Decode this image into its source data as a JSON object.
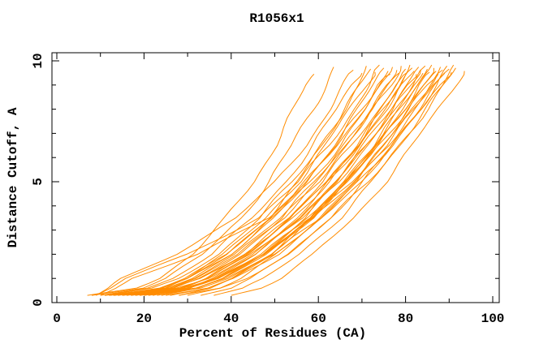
{
  "figure": {
    "background": "#ffffff",
    "frame_color": "#000000",
    "curve_color": "#ff8c00"
  },
  "chart_data": {
    "type": "line",
    "title": "R1056x1",
    "xlabel": "Percent of Residues (CA)",
    "ylabel": "Distance Cutoff, A",
    "xlim": [
      0,
      100
    ],
    "ylim": [
      0,
      10
    ],
    "grid": false,
    "legend": "none",
    "x_major_ticks": [
      0,
      20,
      40,
      60,
      80,
      100
    ],
    "x_major_tick_labels": [
      "0",
      "20",
      "40",
      "60",
      "80",
      "100"
    ],
    "x_minor_ticks": [
      10,
      30,
      50,
      70,
      90
    ],
    "y_major_ticks": [
      0,
      5,
      10
    ],
    "y_major_tick_labels": [
      "0",
      "5",
      "10"
    ],
    "y_minor_ticks": [
      1,
      2,
      3,
      4,
      6,
      7,
      8,
      9
    ],
    "series_color": "#ff8c00",
    "cutoff_levels": [
      0.3,
      0.6,
      1,
      2,
      3.5,
      5,
      6.5,
      8,
      9,
      9.7
    ],
    "series": [
      [
        7,
        18,
        23.2,
        31.1,
        39,
        45.1,
        50.1,
        54.5,
        57.2,
        59
      ],
      [
        8,
        19.8,
        25.3,
        33.7,
        42.2,
        48.6,
        54,
        58.7,
        61.6,
        63.5
      ],
      [
        9,
        12,
        15,
        27,
        41,
        50.5,
        57,
        62.5,
        66,
        68
      ],
      [
        10,
        20.7,
        26.4,
        35.5,
        45,
        52.4,
        58.7,
        64.3,
        67.7,
        70
      ],
      [
        12,
        24.5,
        30.3,
        39.3,
        48.3,
        55.2,
        60.9,
        65.9,
        69,
        71
      ],
      [
        11,
        21.9,
        27.7,
        36.9,
        46.6,
        54.1,
        60.5,
        66.2,
        69.7,
        72
      ],
      [
        13,
        23.7,
        29.4,
        38.5,
        48,
        55.4,
        61.7,
        67.3,
        70.7,
        73
      ],
      [
        9,
        12.5,
        16,
        30,
        46,
        55.5,
        62.5,
        68,
        71.5,
        74
      ],
      [
        14,
        24.9,
        30.7,
        39.9,
        49.6,
        57.1,
        63.5,
        69.2,
        72.7,
        75
      ],
      [
        12,
        23.4,
        29.5,
        39.2,
        49.3,
        57.2,
        64,
        69.9,
        73.6,
        76
      ],
      [
        16,
        25.1,
        30.5,
        39.7,
        49.5,
        57.3,
        64.1,
        70.2,
        74,
        76.5
      ],
      [
        10,
        13.5,
        17,
        32,
        49,
        58,
        65,
        71,
        74.5,
        77
      ],
      [
        15,
        26.3,
        32.2,
        41.8,
        51.7,
        59.5,
        66.2,
        72,
        75.6,
        78
      ],
      [
        18,
        27.1,
        32.5,
        41.7,
        51.5,
        59.3,
        66.1,
        72.2,
        76,
        78.5
      ],
      [
        13,
        24.8,
        31,
        41.1,
        51.5,
        59.7,
        66.6,
        72.7,
        76.5,
        79
      ],
      [
        20,
        29,
        34.4,
        43.5,
        53.2,
        61,
        67.7,
        73.8,
        77.5,
        80
      ],
      [
        11,
        25.7,
        32.6,
        43.2,
        53.8,
        61.9,
        68.6,
        74.5,
        78.1,
        80.5
      ],
      [
        17,
        28.4,
        34.5,
        44.2,
        54.3,
        62.2,
        69,
        74.9,
        78.6,
        81
      ],
      [
        22,
        30.9,
        36.3,
        45.3,
        54.9,
        62.6,
        69.3,
        75.3,
        79,
        81.5
      ],
      [
        14,
        26.2,
        32.6,
        42.9,
        53.6,
        62.1,
        69.2,
        75.5,
        79.4,
        82
      ],
      [
        19,
        30.4,
        36.3,
        46,
        56,
        63.9,
        70.6,
        76.5,
        80.1,
        82.5
      ],
      [
        24,
        32.8,
        38.2,
        47.1,
        56.6,
        64.3,
        70.9,
        76.9,
        80.5,
        83
      ],
      [
        12,
        27.2,
        34.2,
        45.1,
        56,
        64.3,
        71.3,
        77.4,
        81.1,
        83.5
      ],
      [
        16,
        28.2,
        34.6,
        44.9,
        55.6,
        64.1,
        71.2,
        77.5,
        81.4,
        84
      ],
      [
        26,
        34.8,
        40,
        48.9,
        58.4,
        66,
        72.5,
        78.4,
        82,
        84.5
      ],
      [
        20,
        31.6,
        37.7,
        47.6,
        57.9,
        66,
        72.8,
        78.8,
        82.5,
        85
      ],
      [
        15,
        29.9,
        36.9,
        47.6,
        58.4,
        66.6,
        73.4,
        79.4,
        83.1,
        85.5
      ],
      [
        28,
        35.4,
        40.2,
        48.8,
        58.4,
        66.3,
        73.2,
        79.4,
        83.4,
        86
      ],
      [
        18,
        30.3,
        36.7,
        47.1,
        57.9,
        66.4,
        73.6,
        80,
        83.9,
        86.5
      ],
      [
        23,
        32.6,
        38.4,
        48,
        58.4,
        66.7,
        73.9,
        80.3,
        84.3,
        87
      ],
      [
        13,
        28.8,
        36.2,
        47.5,
        58.9,
        67.5,
        74.8,
        81.1,
        85,
        87.5
      ],
      [
        30,
        37.4,
        42.2,
        50.8,
        60.4,
        68.3,
        75.2,
        81.4,
        85.4,
        88
      ],
      [
        21,
        33.1,
        39.4,
        49.7,
        60.4,
        68.7,
        75.8,
        82.1,
        85.9,
        88.5
      ],
      [
        17,
        29.9,
        36.7,
        47.6,
        59,
        67.9,
        75.5,
        82.2,
        86.3,
        89
      ],
      [
        33,
        40.2,
        44.9,
        53.3,
        62.6,
        70.3,
        77,
        83.1,
        87,
        89.5
      ],
      [
        25,
        34.8,
        40.6,
        50.4,
        60.9,
        69.4,
        76.7,
        83.2,
        87.3,
        90
      ],
      [
        19,
        31.8,
        38.5,
        49.4,
        60.7,
        69.6,
        77.1,
        83.7,
        87.8,
        90.5
      ],
      [
        36,
        43,
        47.6,
        55.7,
        64.8,
        72.3,
        78.8,
        84.8,
        88.5,
        91
      ],
      [
        28,
        37.5,
        43.2,
        52.8,
        63.1,
        71.4,
        78.5,
        84.9,
        88.8,
        91.5
      ],
      [
        40,
        46.8,
        51.3,
        59.2,
        68,
        75.3,
        81.7,
        87.5,
        91.1,
        93.5
      ]
    ]
  }
}
